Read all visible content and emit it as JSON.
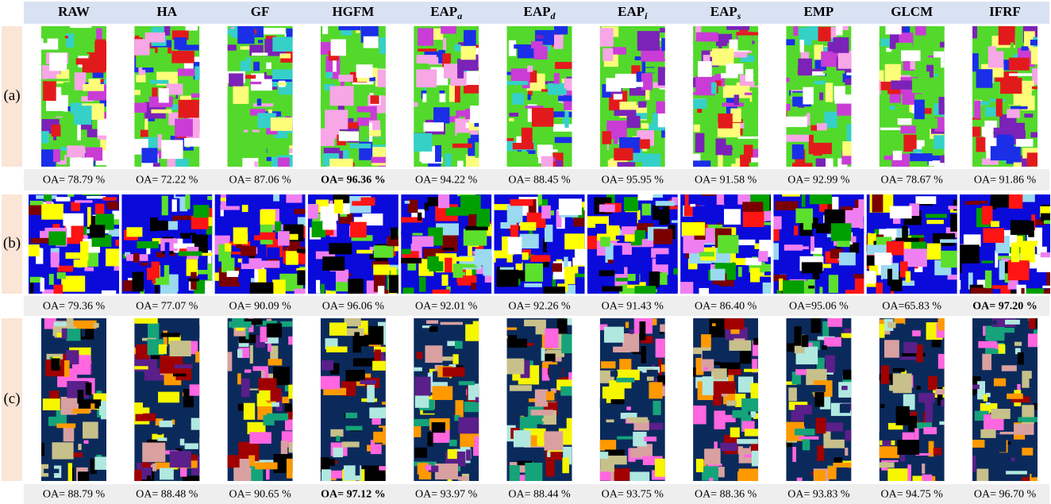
{
  "columns": [
    {
      "name": "RAW"
    },
    {
      "name": "HA"
    },
    {
      "name": "GF"
    },
    {
      "name": "HGFM"
    },
    {
      "name": "EAP",
      "sub": "a"
    },
    {
      "name": "EAP",
      "sub": "d"
    },
    {
      "name": "EAP",
      "sub": "i"
    },
    {
      "name": "EAP",
      "sub": "s"
    },
    {
      "name": "EMP"
    },
    {
      "name": "GLCM"
    },
    {
      "name": "IFRF"
    }
  ],
  "rows": [
    {
      "label": "(a)",
      "best": 3,
      "oa": [
        "OA= 78.79 %",
        "OA= 72.22 %",
        "OA= 87.06 %",
        "OA= 96.36 %",
        "OA= 94.22 %",
        "OA= 88.45 %",
        "OA= 95.95 %",
        "OA= 91.58 %",
        "OA= 92.99 %",
        "OA= 78.67 %",
        "OA= 91.86 %"
      ]
    },
    {
      "label": "(b)",
      "best": 10,
      "oa": [
        "OA= 79.36 %",
        "OA= 77.07 %",
        "OA= 90.09 %",
        "OA= 96.06 %",
        "OA= 92.01 %",
        "OA= 92.26 %",
        "OA= 91.43 %",
        "OA= 86.40 %",
        "OA=95.06 %",
        "OA=65.83 %",
        "OA= 97.20 %"
      ]
    },
    {
      "label": "(c)",
      "best": 3,
      "oa": [
        "OA= 88.79 %",
        "OA= 88.48 %",
        "OA= 90.65 %",
        "OA= 97.12 %",
        "OA= 93.97 %",
        "OA= 88.44 %",
        "OA= 93.75 %",
        "OA= 88.36 %",
        "OA= 93.83 %",
        "OA= 94.75 %",
        "OA= 96.70 %"
      ]
    }
  ]
}
